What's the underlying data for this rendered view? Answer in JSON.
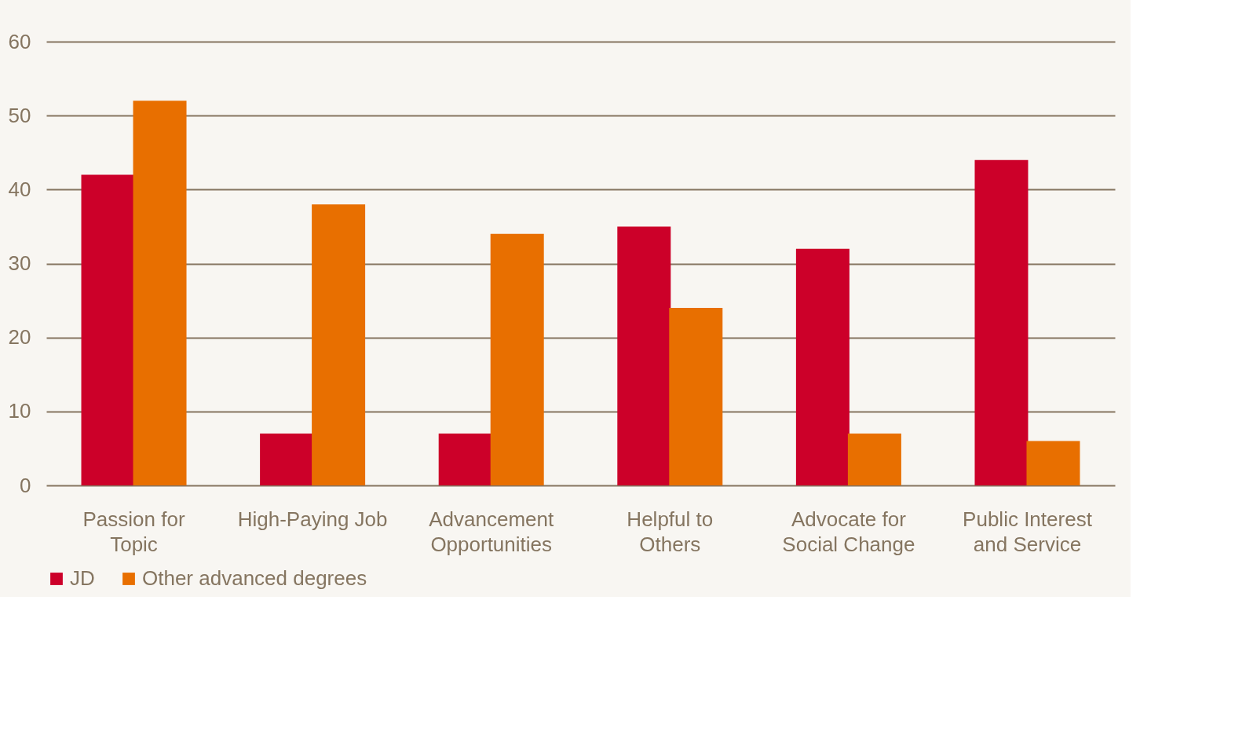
{
  "chart_data": {
    "type": "bar",
    "categories": [
      "Passion for Topic",
      "High-Paying Job",
      "Advancement Opportunities",
      "Helpful to Others",
      "Advocate for Social Change",
      "Public Interest and Service"
    ],
    "series": [
      {
        "name": "JD",
        "color": "#cc0029",
        "values": [
          42,
          7,
          7,
          35,
          32,
          44
        ]
      },
      {
        "name": "Other advanced degrees",
        "color": "#e86f00",
        "values": [
          52,
          38,
          34,
          24,
          7,
          6
        ]
      }
    ],
    "ylim": [
      0,
      60
    ],
    "yticks": [
      0,
      10,
      20,
      30,
      40,
      50,
      60
    ],
    "grid": "y",
    "legend": "bottom"
  }
}
